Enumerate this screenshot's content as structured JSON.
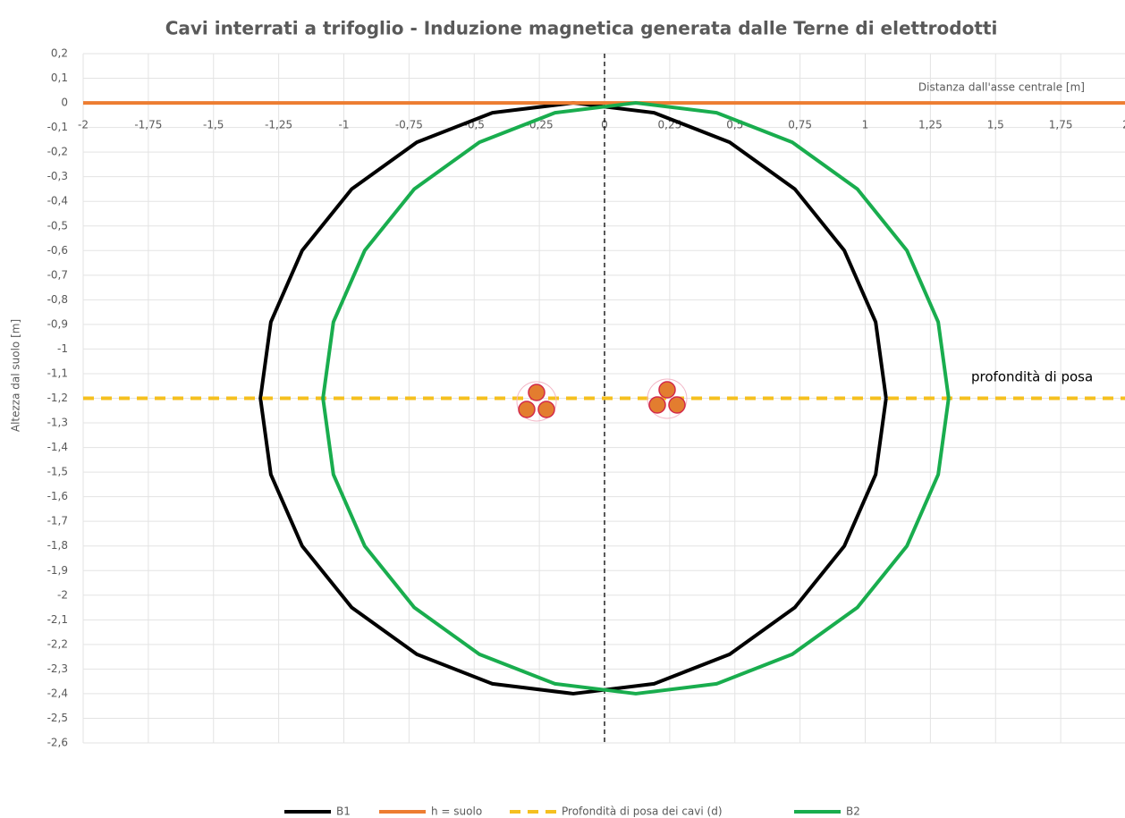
{
  "chart_data": {
    "type": "line",
    "title": "Cavi interrati a trifoglio - Induzione magnetica generata dalle Terne di elettrodotti",
    "x_label": "Distanza dall'asse centrale [m]",
    "y_label": "Altezza dal suolo [m]",
    "annotation": "profondità di posa",
    "xlim": [
      -2,
      2
    ],
    "ylim": [
      -2.6,
      0.2
    ],
    "xticks": [
      -2,
      {
        "value": -1.75,
        "label": "-1,75"
      },
      {
        "value": -1.5,
        "label": "-1,5"
      },
      {
        "value": -1.25,
        "label": "-1,25"
      },
      -1,
      {
        "value": -0.75,
        "label": "-0,75"
      },
      {
        "value": -0.5,
        "label": "-0,5"
      },
      {
        "value": -0.25,
        "label": "-0,25"
      },
      0,
      {
        "value": 0.25,
        "label": "0,25"
      },
      {
        "value": 0.5,
        "label": "0,5"
      },
      {
        "value": 0.75,
        "label": "0,75"
      },
      1,
      {
        "value": 1.25,
        "label": "1,25"
      },
      {
        "value": 1.5,
        "label": "1,5"
      },
      {
        "value": 1.75,
        "label": "1,75"
      },
      2
    ],
    "yticks": [
      {
        "value": 0.2,
        "label": "0,2"
      },
      {
        "value": 0.1,
        "label": "0,1"
      },
      0,
      {
        "value": -0.1,
        "label": "-0,1"
      },
      {
        "value": -0.2,
        "label": "-0,2"
      },
      {
        "value": -0.3,
        "label": "-0,3"
      },
      {
        "value": -0.4,
        "label": "-0,4"
      },
      {
        "value": -0.5,
        "label": "-0,5"
      },
      {
        "value": -0.6,
        "label": "-0,6"
      },
      {
        "value": -0.7,
        "label": "-0,7"
      },
      {
        "value": -0.8,
        "label": "-0,8"
      },
      {
        "value": -0.9,
        "label": "-0,9"
      },
      -1,
      {
        "value": -1.1,
        "label": "-1,1"
      },
      {
        "value": -1.2,
        "label": "-1,2"
      },
      {
        "value": -1.3,
        "label": "-1,3"
      },
      {
        "value": -1.4,
        "label": "-1,4"
      },
      {
        "value": -1.5,
        "label": "-1,5"
      },
      {
        "value": -1.6,
        "label": "-1,6"
      },
      {
        "value": -1.7,
        "label": "-1,7"
      },
      {
        "value": -1.8,
        "label": "-1,8"
      },
      {
        "value": -1.9,
        "label": "-1,9"
      },
      -2,
      {
        "value": -2.1,
        "label": "-2,1"
      },
      {
        "value": -2.2,
        "label": "-2,2"
      },
      {
        "value": -2.3,
        "label": "-2,3"
      },
      {
        "value": -2.4,
        "label": "-2,4"
      },
      {
        "value": -2.5,
        "label": "-2,5"
      },
      {
        "value": -2.6,
        "label": "-2,6"
      }
    ],
    "grid": true,
    "legend": "bottom",
    "series": [
      {
        "name": "B1",
        "color": "#000000",
        "dashed": false,
        "x": [
          1.08,
          1.04,
          0.92,
          0.73,
          0.48,
          0.19,
          -0.12,
          -0.43,
          -0.72,
          -0.97,
          -1.16,
          -1.28,
          -1.32,
          -1.28,
          -1.16,
          -0.97,
          -0.72,
          -0.43,
          -0.12,
          0.19,
          0.48,
          0.73,
          0.92,
          1.04,
          1.08
        ],
        "y": [
          -1.2,
          -0.89,
          -0.6,
          -0.35,
          -0.16,
          -0.04,
          0,
          -0.04,
          -0.16,
          -0.35,
          -0.6,
          -0.89,
          -1.2,
          -1.51,
          -1.8,
          -2.05,
          -2.24,
          -2.36,
          -2.4,
          -2.36,
          -2.24,
          -2.05,
          -1.8,
          -1.51,
          -1.2
        ]
      },
      {
        "name": "h = suolo",
        "color": "#ed7d31",
        "dashed": false,
        "x": [
          -2,
          2
        ],
        "y": [
          0,
          0
        ]
      },
      {
        "name": "Profondità di posa dei cavi (d)",
        "color": "#f5c01f",
        "dashed": true,
        "x": [
          -2,
          2
        ],
        "y": [
          -1.2,
          -1.2
        ]
      },
      {
        "name": "B2",
        "color": "#19ad4e",
        "dashed": false,
        "x": [
          1.32,
          1.28,
          1.16,
          0.97,
          0.72,
          0.43,
          0.12,
          -0.19,
          -0.48,
          -0.73,
          -0.92,
          -1.04,
          -1.08,
          -1.04,
          -0.92,
          -0.73,
          -0.48,
          -0.19,
          0.12,
          0.43,
          0.72,
          0.97,
          1.16,
          1.28,
          1.32
        ],
        "y": [
          -1.2,
          -0.89,
          -0.6,
          -0.35,
          -0.16,
          -0.04,
          0,
          -0.04,
          -0.16,
          -0.35,
          -0.6,
          -0.89,
          -1.2,
          -1.51,
          -1.8,
          -2.05,
          -2.24,
          -2.36,
          -2.4,
          -2.36,
          -2.24,
          -2.05,
          -1.8,
          -1.51,
          -1.2
        ]
      }
    ]
  }
}
